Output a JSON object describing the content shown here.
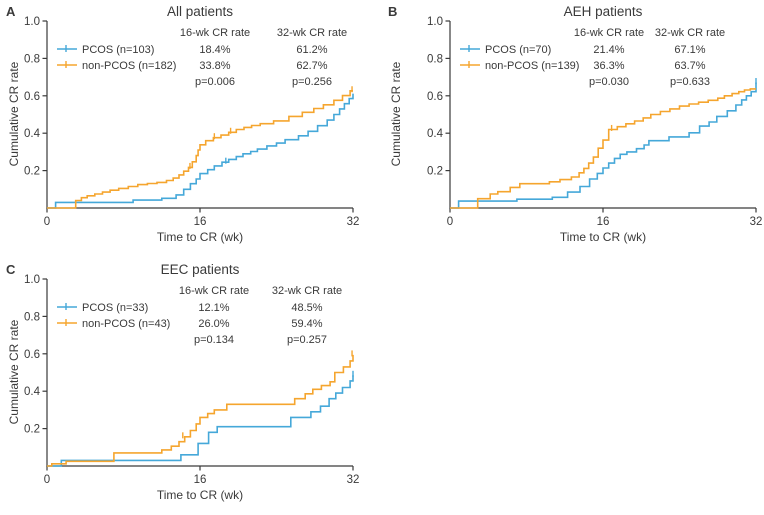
{
  "figure": {
    "xlabel": "Time to CR (wk)",
    "ylabel": "Cumulative CR rate",
    "x_ticks": [
      0,
      16,
      32
    ],
    "y_ticks": [
      0.2,
      0.4,
      0.6,
      0.8,
      1.0
    ],
    "xlim": [
      0,
      32
    ],
    "ylim": [
      0,
      1.0
    ],
    "colors": {
      "pcos_blue": "#45a8d9",
      "non_pcos_orange": "#f5a52e",
      "text": "#3a3a3a",
      "axis": "#3a3a3a"
    }
  },
  "chart_data": [
    {
      "type": "line",
      "step": true,
      "panel_label": "A",
      "title": "All patients",
      "columns": [
        "16-wk CR rate",
        "32-wk CR rate"
      ],
      "p_values": {
        "p16": "p=0.006",
        "p32": "p=0.256"
      },
      "series": [
        {
          "name": "PCOS (n=103)",
          "color": "pcos_blue",
          "cr_16wk": "18.4%",
          "cr_32wk": "61.2%",
          "points": [
            [
              0.9,
              0.03
            ],
            [
              9,
              0.042
            ],
            [
              12,
              0.052
            ],
            [
              13.5,
              0.07
            ],
            [
              14.3,
              0.1
            ],
            [
              15,
              0.13
            ],
            [
              15.6,
              0.155
            ],
            [
              16,
              0.184
            ],
            [
              16.8,
              0.205
            ],
            [
              17.5,
              0.225
            ],
            [
              18.3,
              0.245
            ],
            [
              19,
              0.26
            ],
            [
              19.8,
              0.275
            ],
            [
              20.5,
              0.29
            ],
            [
              21.3,
              0.302
            ],
            [
              22,
              0.315
            ],
            [
              23,
              0.332
            ],
            [
              24,
              0.347
            ],
            [
              24.9,
              0.365
            ],
            [
              26.3,
              0.386
            ],
            [
              27.3,
              0.41
            ],
            [
              28.3,
              0.44
            ],
            [
              29.3,
              0.47
            ],
            [
              30,
              0.5
            ],
            [
              30.6,
              0.53
            ],
            [
              31.1,
              0.558
            ],
            [
              31.6,
              0.585
            ],
            [
              32,
              0.612
            ]
          ],
          "censor_marks": [
            [
              18.7,
              0.245
            ]
          ]
        },
        {
          "name": "non-PCOS (n=182)",
          "color": "non_pcos_orange",
          "cr_16wk": "33.8%",
          "cr_32wk": "62.7%",
          "points": [
            [
              3,
              0.04
            ],
            [
              3.6,
              0.055
            ],
            [
              4.2,
              0.065
            ],
            [
              5,
              0.075
            ],
            [
              5.8,
              0.085
            ],
            [
              6.6,
              0.095
            ],
            [
              7.5,
              0.105
            ],
            [
              8.5,
              0.115
            ],
            [
              9.5,
              0.125
            ],
            [
              10.5,
              0.131
            ],
            [
              11.5,
              0.137
            ],
            [
              12.5,
              0.147
            ],
            [
              13.2,
              0.16
            ],
            [
              13.8,
              0.177
            ],
            [
              14.3,
              0.197
            ],
            [
              14.8,
              0.217
            ],
            [
              15.2,
              0.247
            ],
            [
              15.6,
              0.28
            ],
            [
              15.8,
              0.31
            ],
            [
              16,
              0.338
            ],
            [
              16.6,
              0.36
            ],
            [
              17.4,
              0.376
            ],
            [
              18.2,
              0.39
            ],
            [
              19,
              0.405
            ],
            [
              19.8,
              0.42
            ],
            [
              20.6,
              0.431
            ],
            [
              21.4,
              0.441
            ],
            [
              22.3,
              0.451
            ],
            [
              23.7,
              0.466
            ],
            [
              25.3,
              0.49
            ],
            [
              26.7,
              0.512
            ],
            [
              27.9,
              0.532
            ],
            [
              28.9,
              0.552
            ],
            [
              30,
              0.576
            ],
            [
              30.9,
              0.601
            ],
            [
              31.7,
              0.627
            ]
          ],
          "censor_marks": [
            [
              14.95,
              0.217
            ],
            [
              17.5,
              0.376
            ],
            [
              19.2,
              0.405
            ],
            [
              31.9,
              0.627
            ]
          ]
        }
      ]
    },
    {
      "type": "line",
      "step": true,
      "panel_label": "B",
      "title": "AEH patients",
      "columns": [
        "16-wk CR rate",
        "32-wk CR rate"
      ],
      "p_values": {
        "p16": "p=0.030",
        "p32": "p=0.633"
      },
      "series": [
        {
          "name": "PCOS (n=70)",
          "color": "pcos_blue",
          "cr_16wk": "21.4%",
          "cr_32wk": "67.1%",
          "points": [
            [
              0.9,
              0.037
            ],
            [
              7,
              0.047
            ],
            [
              10.7,
              0.057
            ],
            [
              12.3,
              0.085
            ],
            [
              13.6,
              0.115
            ],
            [
              14.6,
              0.155
            ],
            [
              15.4,
              0.185
            ],
            [
              16,
              0.214
            ],
            [
              16.6,
              0.24
            ],
            [
              17.2,
              0.265
            ],
            [
              17.8,
              0.287
            ],
            [
              18.5,
              0.3
            ],
            [
              19.5,
              0.317
            ],
            [
              20.3,
              0.337
            ],
            [
              20.8,
              0.36
            ],
            [
              22.9,
              0.38
            ],
            [
              25,
              0.402
            ],
            [
              26.1,
              0.438
            ],
            [
              27.1,
              0.46
            ],
            [
              27.9,
              0.49
            ],
            [
              29,
              0.52
            ],
            [
              29.9,
              0.551
            ],
            [
              30.5,
              0.578
            ],
            [
              31,
              0.6
            ],
            [
              31.5,
              0.622
            ],
            [
              32,
              0.671
            ]
          ],
          "censor_marks": [
            [
              32,
              0.671
            ]
          ]
        },
        {
          "name": "non-PCOS (n=139)",
          "color": "non_pcos_orange",
          "cr_16wk": "36.3%",
          "cr_32wk": "63.7%",
          "points": [
            [
              2.9,
              0.05
            ],
            [
              4.2,
              0.075
            ],
            [
              5,
              0.087
            ],
            [
              6.3,
              0.11
            ],
            [
              7.3,
              0.13
            ],
            [
              10.4,
              0.14
            ],
            [
              11.5,
              0.152
            ],
            [
              12.7,
              0.166
            ],
            [
              13.5,
              0.188
            ],
            [
              14,
              0.212
            ],
            [
              14.5,
              0.24
            ],
            [
              15,
              0.272
            ],
            [
              15.5,
              0.32
            ],
            [
              16,
              0.363
            ],
            [
              16.6,
              0.42
            ],
            [
              17.5,
              0.435
            ],
            [
              18.4,
              0.45
            ],
            [
              19.3,
              0.465
            ],
            [
              20.2,
              0.482
            ],
            [
              21,
              0.5
            ],
            [
              22,
              0.516
            ],
            [
              23,
              0.53
            ],
            [
              24,
              0.545
            ],
            [
              25,
              0.556
            ],
            [
              26,
              0.566
            ],
            [
              27,
              0.576
            ],
            [
              28,
              0.587
            ],
            [
              28.7,
              0.6
            ],
            [
              29.5,
              0.612
            ],
            [
              30.2,
              0.622
            ],
            [
              30.8,
              0.631
            ],
            [
              31.4,
              0.637
            ]
          ],
          "censor_marks": [
            [
              16.9,
              0.42
            ]
          ]
        }
      ]
    },
    {
      "type": "line",
      "step": true,
      "panel_label": "C",
      "title": "EEC patients",
      "columns": [
        "16-wk CR rate",
        "32-wk CR rate"
      ],
      "p_values": {
        "p16": "p=0.134",
        "p32": "p=0.257"
      },
      "series": [
        {
          "name": "PCOS (n=33)",
          "color": "pcos_blue",
          "cr_16wk": "12.1%",
          "cr_32wk": "48.5%",
          "points": [
            [
              1.5,
              0.03
            ],
            [
              14,
              0.06
            ],
            [
              15.8,
              0.121
            ],
            [
              16.9,
              0.18
            ],
            [
              17.8,
              0.21
            ],
            [
              25.5,
              0.26
            ],
            [
              27.6,
              0.29
            ],
            [
              28.6,
              0.32
            ],
            [
              29.5,
              0.36
            ],
            [
              30.2,
              0.39
            ],
            [
              30.9,
              0.42
            ],
            [
              31.7,
              0.455
            ],
            [
              32,
              0.485
            ]
          ],
          "censor_marks": [
            [
              32,
              0.485
            ]
          ]
        },
        {
          "name": "non-PCOS (n=43)",
          "color": "non_pcos_orange",
          "cr_16wk": "26.0%",
          "cr_32wk": "59.4%",
          "points": [
            [
              0.5,
              0.012
            ],
            [
              2,
              0.025
            ],
            [
              7,
              0.07
            ],
            [
              12,
              0.086
            ],
            [
              13,
              0.106
            ],
            [
              13.8,
              0.13
            ],
            [
              14.4,
              0.156
            ],
            [
              15,
              0.19
            ],
            [
              15.6,
              0.225
            ],
            [
              16,
              0.26
            ],
            [
              16.8,
              0.28
            ],
            [
              17.5,
              0.3
            ],
            [
              18.8,
              0.33
            ],
            [
              25.9,
              0.36
            ],
            [
              27,
              0.386
            ],
            [
              27.8,
              0.41
            ],
            [
              28.7,
              0.43
            ],
            [
              29.6,
              0.45
            ],
            [
              30.1,
              0.5
            ],
            [
              31,
              0.53
            ],
            [
              31.7,
              0.562
            ],
            [
              32,
              0.594
            ]
          ],
          "censor_marks": [
            [
              14.2,
              0.156
            ],
            [
              31.9,
              0.594
            ]
          ]
        }
      ]
    }
  ]
}
